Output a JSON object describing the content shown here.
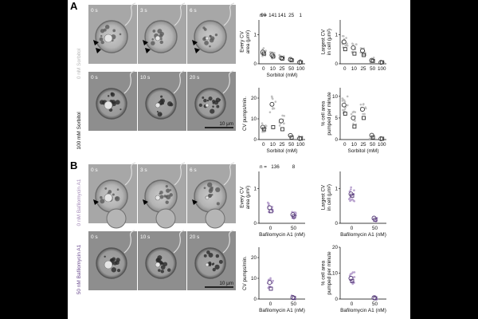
{
  "panels": [
    {
      "label": "A",
      "rows": [
        {
          "side_label": "0 nM Sorbitol",
          "side_color": "#b8b8b8",
          "timestamps": [
            "0 s",
            "3 s",
            "6 s"
          ],
          "arrows": true
        },
        {
          "side_label": "100 mM Sorbitol",
          "side_color": "#111111",
          "timestamps": [
            "0 s",
            "10 s",
            "20 s"
          ],
          "arrows": false,
          "scalebar": "10 μm"
        }
      ]
    },
    {
      "label": "B",
      "rows": [
        {
          "side_label": "0 nM Bafilomycin A1",
          "side_color": "#a48ab8",
          "timestamps": [
            "0 s",
            "3 s",
            "6 s"
          ],
          "arrows": true
        },
        {
          "side_label": "50 nM Bafilomycin A1",
          "side_color": "#6a4a8e",
          "timestamps": [
            "0 s",
            "10 s",
            "20 s"
          ],
          "arrows": false,
          "scalebar": "10 μm"
        }
      ]
    }
  ],
  "chart_data": [
    {
      "id": "A1",
      "type": "scatter",
      "ylabel": "Every CV\narea (μm²)",
      "xlabel": "Sorbitol (mM)",
      "categories": [
        "0",
        "10",
        "25",
        "50",
        "100"
      ],
      "ylim": [
        0,
        1.5
      ],
      "y_ticks": [
        0,
        1
      ],
      "n_label": "n =",
      "n_counts": [
        "90",
        "141",
        "141",
        "25",
        "1"
      ],
      "means": [
        0.4,
        0.3,
        0.2,
        0.15,
        0.05
      ],
      "medians": [
        0.35,
        0.25,
        0.18,
        0.12,
        0.05
      ],
      "point_color": "#c0c0c0",
      "mean_color": "#333333"
    },
    {
      "id": "A2",
      "type": "scatter",
      "ylabel": "Largest CV\nin cell (μm²)",
      "xlabel": "",
      "categories": [
        "0",
        "10",
        "25",
        "50",
        "100"
      ],
      "ylim": [
        0,
        1.5
      ],
      "y_ticks": [
        0,
        1
      ],
      "means": [
        0.75,
        0.55,
        0.45,
        0.12,
        0.05
      ],
      "medians": [
        0.5,
        0.35,
        0.3,
        0.1,
        0.05
      ],
      "point_color": "#c0c0c0",
      "mean_color": "#333333"
    },
    {
      "id": "A3",
      "type": "scatter",
      "ylabel": "CV pumps/min.",
      "xlabel": "Sorbitol (mM)",
      "categories": [
        "0",
        "10",
        "25",
        "50",
        "100"
      ],
      "ylim": [
        0,
        25
      ],
      "y_ticks": [
        0,
        10,
        20
      ],
      "means": [
        6,
        17,
        9,
        2,
        0.5
      ],
      "medians": [
        5,
        6,
        5,
        1,
        0.5
      ],
      "point_color": "#c0c0c0",
      "mean_color": "#333333"
    },
    {
      "id": "A4",
      "type": "scatter",
      "ylabel": "% cell area\npumped per minute",
      "xlabel": "Sorbitol (mM)",
      "categories": [
        "0",
        "10",
        "25",
        "50",
        "100"
      ],
      "ylim": [
        0,
        12
      ],
      "y_ticks": [
        0,
        5,
        10
      ],
      "means": [
        8,
        5,
        7,
        1,
        0.2
      ],
      "medians": [
        6,
        3,
        5,
        0.5,
        0.2
      ],
      "point_color": "#c0c0c0",
      "mean_color": "#333333"
    },
    {
      "id": "B1",
      "type": "scatter",
      "ylabel": "Every CV\narea (μm²)",
      "xlabel": "Bafilomycin A1 (nM)",
      "categories": [
        "0",
        "50"
      ],
      "ylim": [
        0,
        1.5
      ],
      "y_ticks": [
        0,
        1
      ],
      "n_label": "n =",
      "n_counts": [
        "136",
        "8"
      ],
      "means": [
        0.45,
        0.25
      ],
      "medians": [
        0.35,
        0.2
      ],
      "point_color": "#b9a3cf",
      "mean_color": "#4a2e6e"
    },
    {
      "id": "B2",
      "type": "scatter",
      "ylabel": "Largest CV\nin cell (μm²)",
      "xlabel": "Bafilomycin A1 (nM)",
      "categories": [
        "0",
        "50"
      ],
      "ylim": [
        0,
        1.5
      ],
      "y_ticks": [
        0,
        1
      ],
      "means": [
        0.85,
        0.15
      ],
      "medians": [
        0.8,
        0.1
      ],
      "point_color": "#b9a3cf",
      "mean_color": "#4a2e6e"
    },
    {
      "id": "B3",
      "type": "scatter",
      "ylabel": "CV pumps/min.",
      "xlabel": "Bafilomycin A1 (nM)",
      "categories": [
        "0",
        "50"
      ],
      "ylim": [
        0,
        25
      ],
      "y_ticks": [
        0,
        10,
        20
      ],
      "means": [
        8,
        0.8
      ],
      "medians": [
        5,
        0.5
      ],
      "point_color": "#b9a3cf",
      "mean_color": "#4a2e6e"
    },
    {
      "id": "B4",
      "type": "scatter",
      "ylabel": "% cell area\npumped per minute",
      "xlabel": "Bafilomycin A1 (nM)",
      "categories": [
        "0",
        "50"
      ],
      "ylim": [
        0,
        20
      ],
      "y_ticks": [
        0,
        10,
        20
      ],
      "means": [
        8,
        0.5
      ],
      "medians": [
        7,
        0.3
      ],
      "point_color": "#b9a3cf",
      "mean_color": "#4a2e6e"
    }
  ]
}
